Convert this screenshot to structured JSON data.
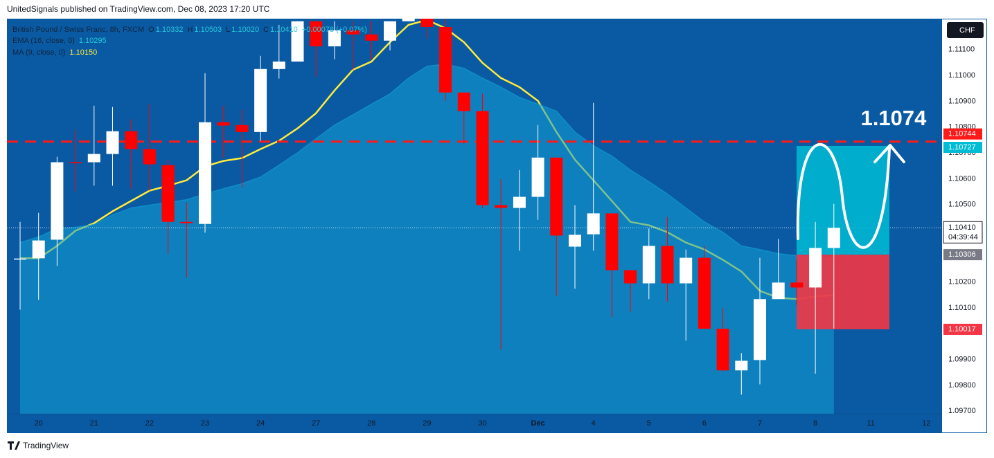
{
  "header": {
    "published": "UnitedSignals published on TradingView.com, Dec 08, 2023 17:20 UTC",
    "footer": "TradingView"
  },
  "chart_data": {
    "type": "candlestick",
    "title": "British Pound / Swiss Franc, 8h, FXCM",
    "ohlc_legend": [
      {
        "key": "O",
        "label": "1.10332"
      },
      {
        "key": "H",
        "label": "1.10503"
      },
      {
        "key": "L",
        "label": "1.10020"
      },
      {
        "key": "C",
        "label": "1.10410"
      }
    ],
    "change": "+0.00078 (+0.07%)",
    "currency": "CHF",
    "categories": [
      null,
      "20",
      null,
      null,
      "21",
      null,
      null,
      "22",
      null,
      null,
      "23",
      null,
      null,
      "24",
      null,
      null,
      "27",
      null,
      null,
      "28",
      null,
      null,
      "29",
      null,
      null,
      "30",
      null,
      null,
      "Dec",
      null,
      null,
      "4",
      null,
      null,
      "5",
      null,
      null,
      "6",
      null,
      null,
      "7",
      null,
      null,
      "8",
      null,
      null,
      "11",
      null,
      null,
      "12"
    ],
    "open": [
      1.10289,
      1.10292,
      1.10364,
      1.10664,
      1.10664,
      1.10696,
      1.10784,
      1.10715,
      1.10653,
      1.10433,
      1.10425,
      1.10819,
      1.10808,
      1.10781,
      1.11025,
      1.11054,
      1.1121,
      1.11113,
      1.11175,
      1.11159,
      1.11135,
      1.1121,
      1.1122,
      1.11188,
      1.10934,
      1.10862,
      1.10498,
      1.10487,
      1.1053,
      1.10682,
      1.10337,
      1.10385,
      1.10466,
      1.10246,
      1.10195,
      1.1034,
      1.10195,
      1.10294,
      1.10019,
      1.09858,
      1.09898,
      1.10134,
      1.10198,
      1.10179,
      1.10332,
      null,
      null,
      null,
      null,
      null
    ],
    "high": [
      1.10433,
      1.10468,
      1.10685,
      1.10789,
      1.10883,
      1.10878,
      1.1083,
      1.10889,
      1.10674,
      1.10508,
      1.11009,
      1.10883,
      1.10867,
      1.11076,
      1.11196,
      1.1121,
      1.1121,
      1.1121,
      1.1121,
      1.1121,
      1.1121,
      1.1122,
      1.1122,
      1.1122,
      1.10934,
      1.10929,
      1.10599,
      1.10634,
      1.10808,
      1.10682,
      1.10498,
      1.10894,
      1.10466,
      1.10246,
      1.10407,
      1.10452,
      1.10326,
      1.1034,
      1.10099,
      1.09925,
      1.10294,
      1.10367,
      1.10286,
      1.10433,
      1.10503,
      null,
      null,
      null,
      null,
      null
    ],
    "low": [
      1.10093,
      1.10131,
      1.10262,
      1.10551,
      1.10573,
      1.10573,
      1.10562,
      1.10554,
      1.10308,
      1.10217,
      1.10391,
      1.1068,
      1.10567,
      1.10747,
      1.10988,
      1.11054,
      1.10996,
      1.11063,
      1.11022,
      1.11063,
      1.11097,
      1.1121,
      1.11143,
      1.10902,
      1.10736,
      1.10487,
      1.09938,
      1.10321,
      1.10441,
      1.10147,
      1.10174,
      1.10321,
      1.10064,
      1.10085,
      1.10134,
      1.10123,
      1.09973,
      1.10019,
      1.09853,
      1.09764,
      1.09804,
      1.10134,
      1.10112,
      1.09845,
      1.1002,
      null,
      null,
      null,
      null,
      null
    ],
    "close": [
      1.10291,
      1.10361,
      1.10664,
      1.10662,
      1.10696,
      1.10784,
      1.10715,
      1.10656,
      1.10433,
      1.10428,
      1.10819,
      1.10806,
      1.10781,
      1.11025,
      1.11054,
      1.1121,
      1.11113,
      1.11175,
      1.11159,
      1.11135,
      1.1121,
      1.1122,
      1.11188,
      1.10934,
      1.10862,
      1.10498,
      1.10487,
      1.1053,
      1.10682,
      1.1038,
      1.10383,
      1.10466,
      1.10246,
      1.10195,
      1.1034,
      1.10195,
      1.10294,
      1.10019,
      1.09858,
      1.09895,
      1.10134,
      1.10198,
      1.10179,
      1.10332,
      1.1041,
      null,
      null,
      null,
      null,
      null
    ],
    "up_color": "#ffffff",
    "down_color": "#ff0000",
    "series": [
      {
        "name": "MA (9, close, 0)",
        "type": "line",
        "color": "#ffeb3b",
        "value_label": "1.10150",
        "values": [
          1.10292,
          1.10292,
          1.1034,
          1.10399,
          1.10428,
          1.10474,
          1.10514,
          1.10554,
          1.10573,
          1.10594,
          1.10648,
          1.10669,
          1.1068,
          1.10715,
          1.10747,
          1.10795,
          1.10854,
          1.10942,
          1.11022,
          1.11054,
          1.11129,
          1.11196,
          1.11215,
          1.11183,
          1.11129,
          1.11049,
          1.1099,
          1.10955,
          1.10902,
          1.10781,
          1.10674,
          1.10594,
          1.10514,
          1.10433,
          1.1042,
          1.10393,
          1.10353,
          1.10326,
          1.10286,
          1.10241,
          1.10166,
          1.10139,
          1.10134,
          1.10144,
          1.1015,
          null,
          null,
          null,
          null,
          null
        ]
      },
      {
        "name": "EMA (16, close, 0)",
        "type": "area",
        "color": "#12a0d4",
        "fill_opacity": 0.55,
        "value_label": "1.10295",
        "values": [
          1.10353,
          1.10375,
          1.10407,
          1.10412,
          1.10423,
          1.1046,
          1.10487,
          1.10498,
          1.10508,
          1.10519,
          1.10541,
          1.10562,
          1.10581,
          1.10607,
          1.10653,
          1.10701,
          1.10755,
          1.10808,
          1.10848,
          1.10889,
          1.10929,
          1.1099,
          1.11036,
          1.11044,
          1.11028,
          1.1099,
          1.10955,
          1.10915,
          1.10889,
          1.10862,
          1.10781,
          1.10728,
          1.10688,
          1.10634,
          1.10589,
          1.10541,
          1.10487,
          1.10433,
          1.10393,
          1.1034,
          1.10326,
          1.1031,
          1.10302,
          1.10297,
          1.10295,
          null,
          null,
          null,
          null,
          null
        ]
      }
    ],
    "ylim": [
      1.0969,
      1.1122
    ],
    "yticks": [
      {
        "value": 1.111,
        "label": "1.11100"
      },
      {
        "value": 1.11,
        "label": "1.11000"
      },
      {
        "value": 1.109,
        "label": "1.10900"
      },
      {
        "value": 1.108,
        "label": "1.10800"
      },
      {
        "value": 1.107,
        "label": "1.10700"
      },
      {
        "value": 1.106,
        "label": "1.10600"
      },
      {
        "value": 1.105,
        "label": "1.10500"
      },
      {
        "value": 1.102,
        "label": "1.10200"
      },
      {
        "value": 1.101,
        "label": "1.10100"
      },
      {
        "value": 1.099,
        "label": "1.09900"
      },
      {
        "value": 1.098,
        "label": "1.09800"
      },
      {
        "value": 1.097,
        "label": "1.09700"
      }
    ],
    "grid": false,
    "hlines": [
      {
        "value": 1.10744,
        "color": "#ff1a1a"
      }
    ],
    "position": {
      "entry": 1.10306,
      "target": 1.10727,
      "stop": 1.10017,
      "target_color": "#00bcd4",
      "stop_color": "#f23645",
      "entry_color": "#787b86"
    },
    "last_price": {
      "value": 1.1041,
      "label": "1.10410"
    },
    "last_time": "04:39:44",
    "annotation": "1.1074"
  }
}
